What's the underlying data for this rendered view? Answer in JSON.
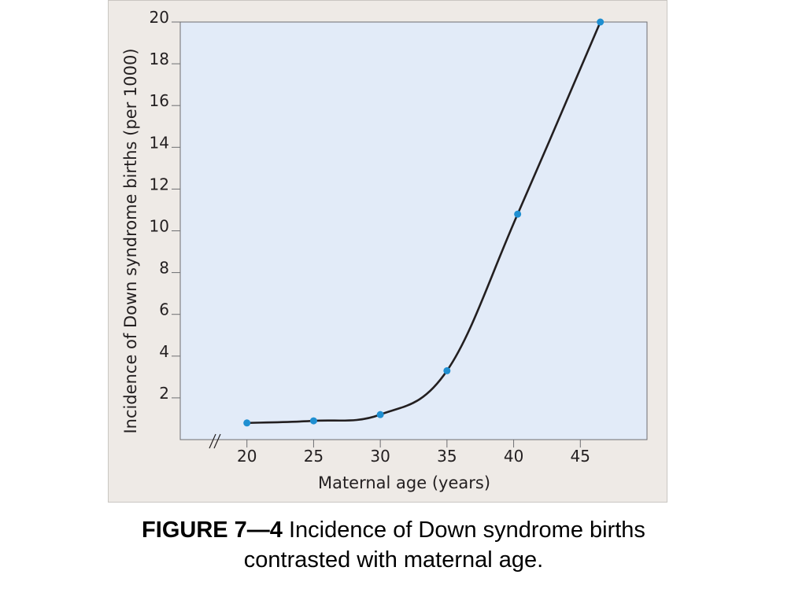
{
  "chart_data": {
    "type": "line",
    "x": [
      20,
      25,
      30,
      35,
      40.3,
      46.5
    ],
    "series": [
      {
        "values": [
          0.8,
          0.9,
          1.2,
          3.3,
          10.8,
          20.0
        ],
        "color": "#1f8fd1",
        "line_color": "#231f20"
      }
    ],
    "x_ticks": [
      20,
      25,
      30,
      35,
      40,
      45
    ],
    "y_ticks": [
      2,
      4,
      6,
      8,
      10,
      12,
      14,
      16,
      18,
      20
    ],
    "xlim": [
      15,
      50
    ],
    "ylim": [
      0,
      20
    ],
    "xlabel": "Maternal age (years)",
    "ylabel": "Incidence of Down syndrome births (per 1000)",
    "x_axis_break": "//",
    "grid": false,
    "plot_background": "#e2ebf8",
    "frame_background": "#eeeae6"
  },
  "caption": {
    "label": "FIGURE 7",
    "dash": "—",
    "number": "4",
    "line1": " Incidence of Down syndrome births",
    "line2": "contrasted with  maternal age."
  }
}
